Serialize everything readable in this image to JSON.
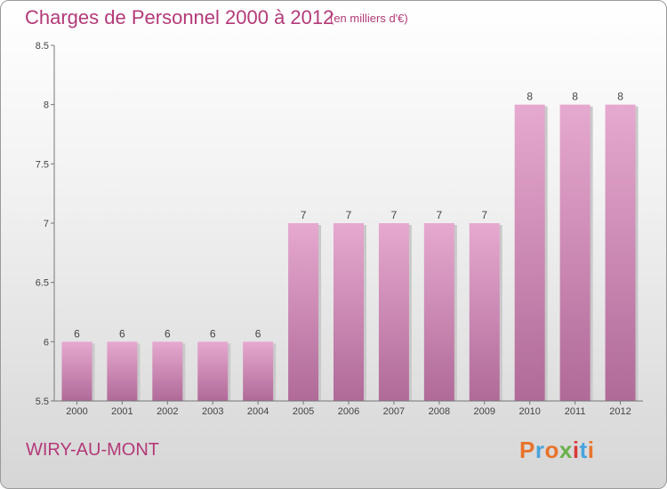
{
  "header": {
    "title": "Charges de Personnel 2000 à 2012",
    "unit": "(en milliers d'€)"
  },
  "footer": {
    "commune": "WIRY-AU-MONT",
    "logo_text": "Proxiti",
    "logo_colors": [
      "#e8732a",
      "#4aa3df",
      "#e8732a",
      "#6ab04c",
      "#d93a3a",
      "#4aa3df",
      "#e8732a"
    ]
  },
  "colors": {
    "bar_top": "#e6a9cf",
    "bar_bottom": "#b06a98",
    "text": "#b33a78",
    "axis": "#444444"
  },
  "chart_data": {
    "type": "bar",
    "title": "Charges de Personnel 2000 à 2012",
    "subtitle": "(en milliers d'€)",
    "categories": [
      "2000",
      "2001",
      "2002",
      "2003",
      "2004",
      "2005",
      "2006",
      "2007",
      "2008",
      "2009",
      "2010",
      "2011",
      "2012"
    ],
    "values": [
      6,
      6,
      6,
      6,
      6,
      7,
      7,
      7,
      7,
      7,
      8,
      8,
      8
    ],
    "data_labels": [
      "6",
      "6",
      "6",
      "6",
      "6",
      "7",
      "7",
      "7",
      "7",
      "7",
      "8",
      "8",
      "8"
    ],
    "ylim": [
      5.5,
      8.5
    ],
    "yticks": [
      5.5,
      6,
      6.5,
      7,
      7.5,
      8,
      8.5
    ],
    "ytick_labels": [
      "5.5",
      "6",
      "6.5",
      "7",
      "7.5",
      "8",
      "8.5"
    ],
    "grid": false,
    "legend": "none"
  }
}
